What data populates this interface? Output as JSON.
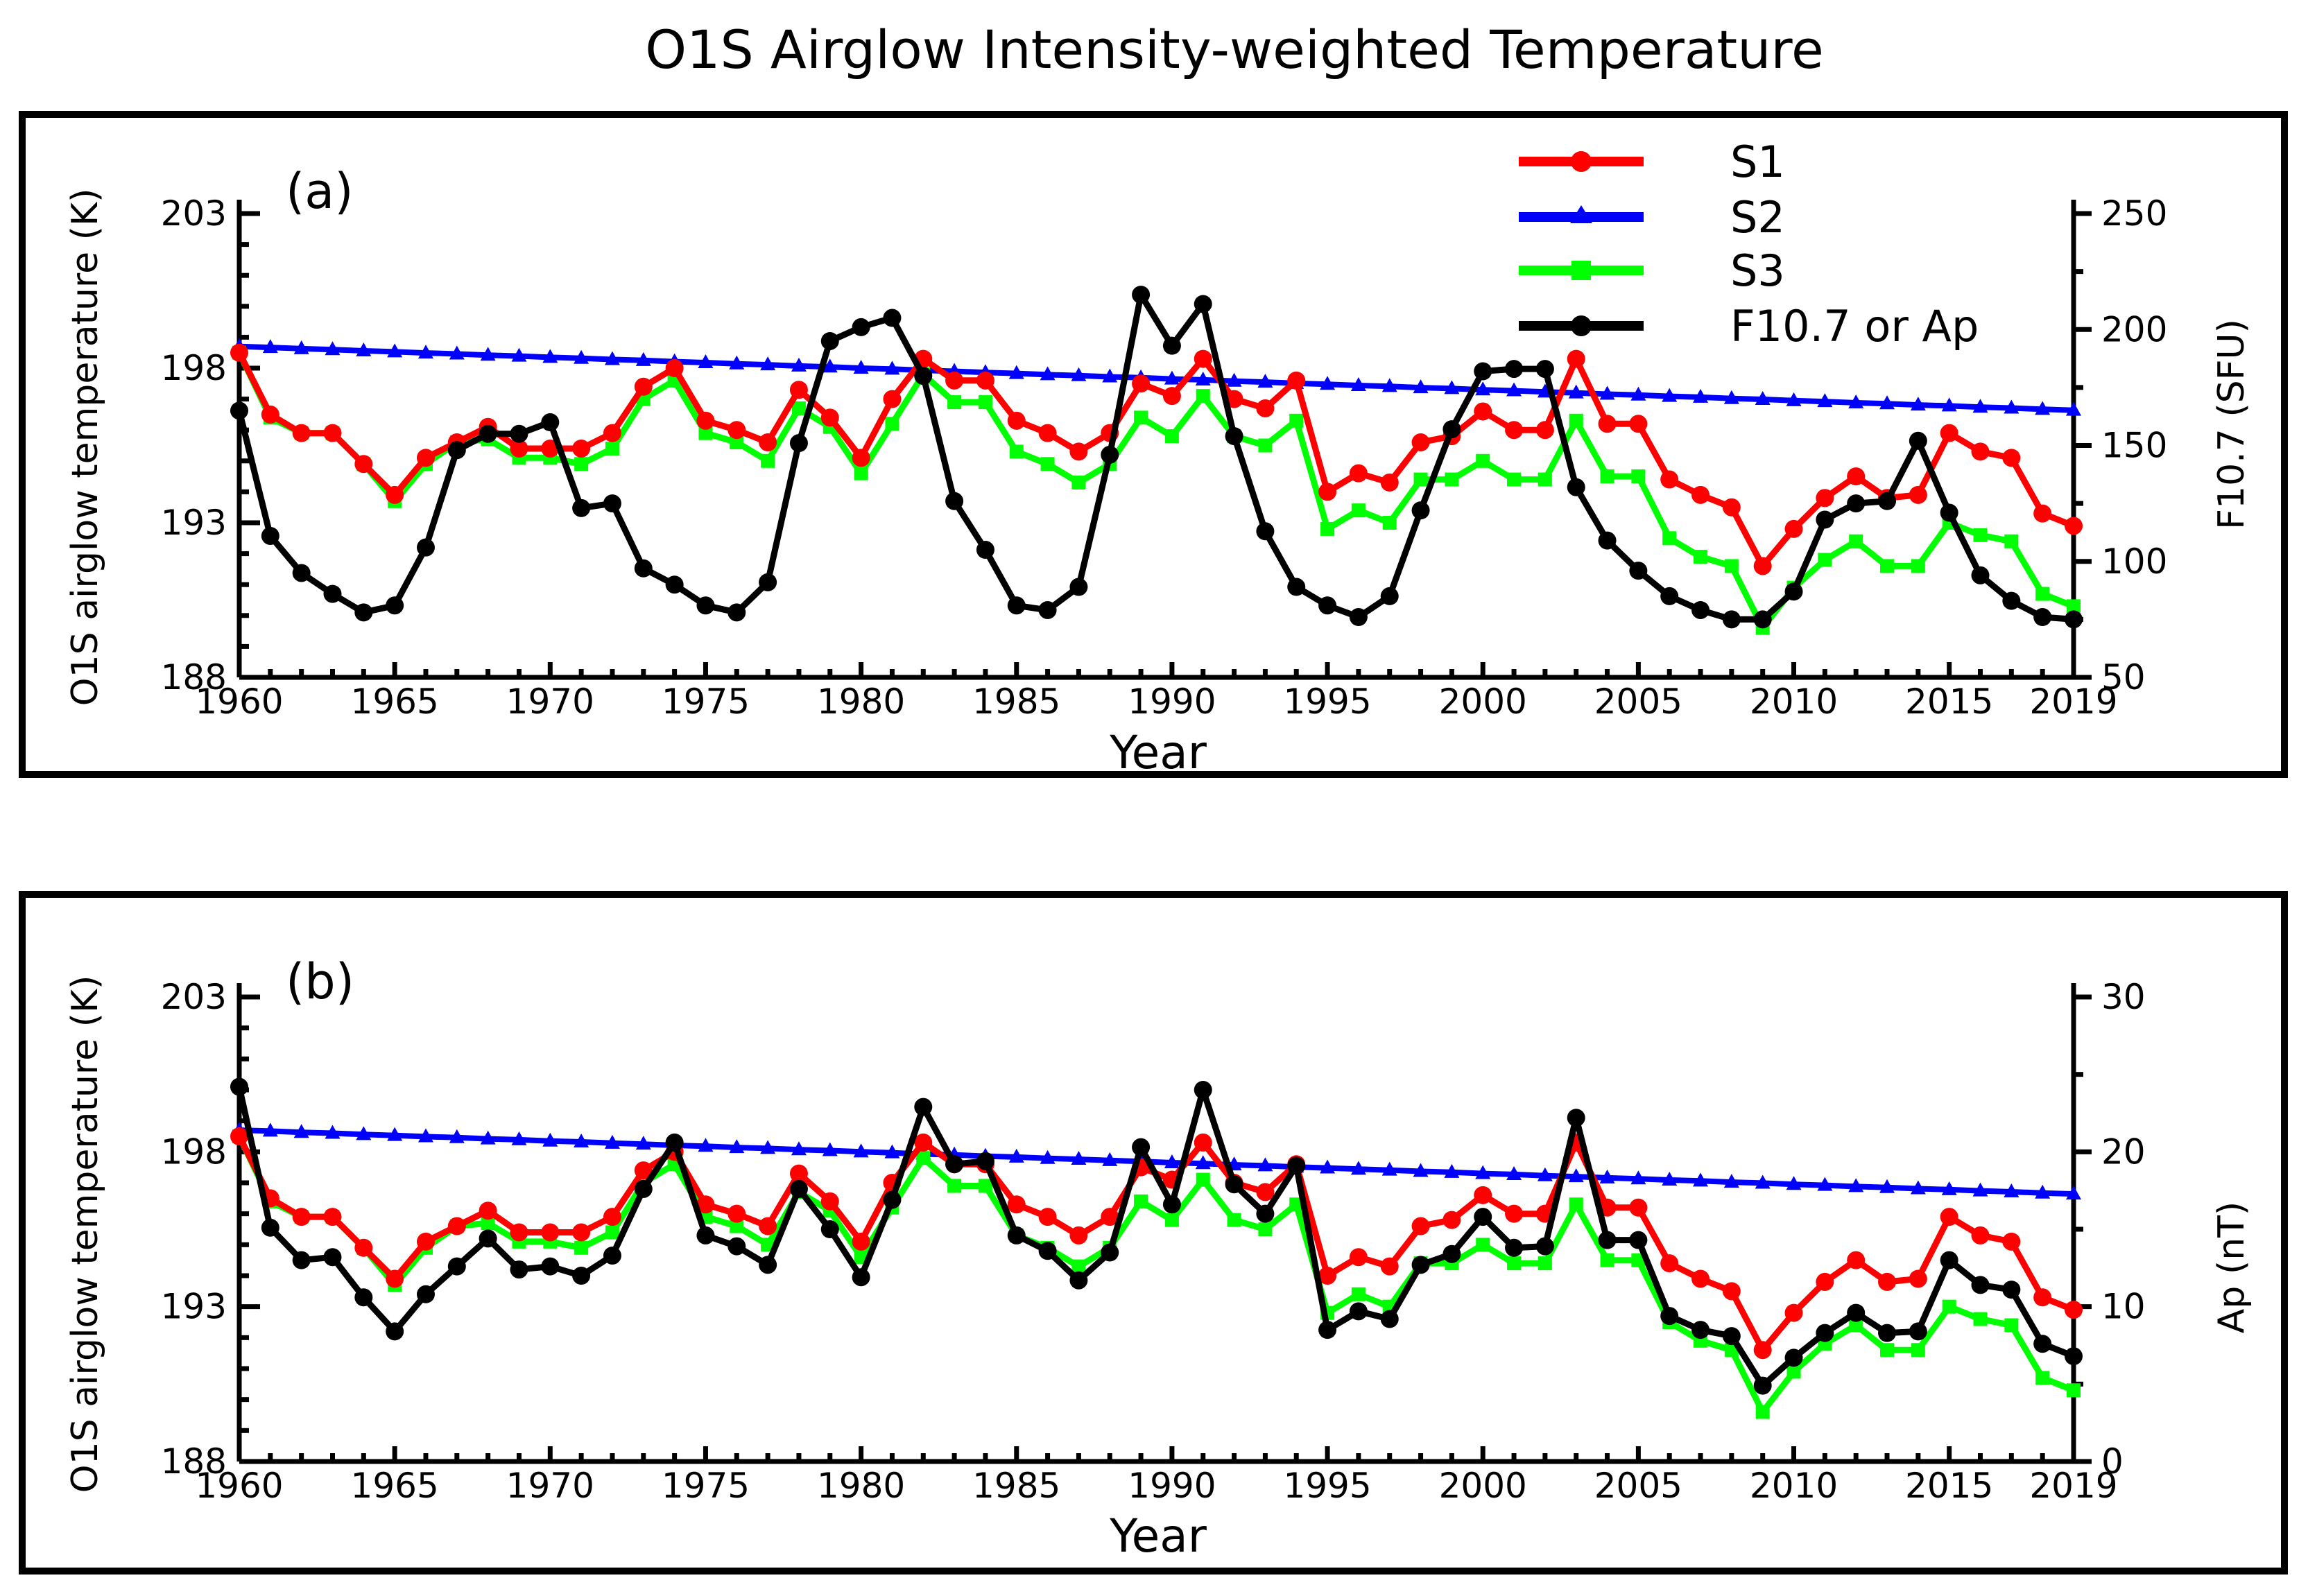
{
  "title": "O1S Airglow Intensity-weighted Temperature",
  "legend": {
    "s1": "S1",
    "s2": "S2",
    "s3": "S3",
    "black": "F10.7 or Ap"
  },
  "colors": {
    "s1": "#ff0000",
    "s2": "#0000ff",
    "s3": "#00ff00",
    "black": "#000000"
  },
  "chart_data": [
    {
      "panel": "(a)",
      "type": "line",
      "xlabel": "Year",
      "ylabel": "O1S airglow temperature (K)",
      "y2label": "F10.7 (SFU)",
      "xlim": [
        1960,
        2019
      ],
      "ylim": [
        188,
        203
      ],
      "y2lim": [
        50,
        250
      ],
      "xticks": [
        1960,
        1965,
        1970,
        1975,
        1980,
        1985,
        1990,
        1995,
        2000,
        2005,
        2010,
        2015,
        2019
      ],
      "yticks": [
        188,
        193,
        198,
        203
      ],
      "y2ticks": [
        50,
        100,
        150,
        200,
        250
      ],
      "x": [
        1960,
        1961,
        1962,
        1963,
        1964,
        1965,
        1966,
        1967,
        1968,
        1969,
        1970,
        1971,
        1972,
        1973,
        1974,
        1975,
        1976,
        1977,
        1978,
        1979,
        1980,
        1981,
        1982,
        1983,
        1984,
        1985,
        1986,
        1987,
        1988,
        1989,
        1990,
        1991,
        1992,
        1993,
        1994,
        1995,
        1996,
        1997,
        1998,
        1999,
        2000,
        2001,
        2002,
        2003,
        2004,
        2005,
        2006,
        2007,
        2008,
        2009,
        2010,
        2011,
        2012,
        2013,
        2014,
        2015,
        2016,
        2017,
        2018,
        2019
      ],
      "series": [
        {
          "name": "S1",
          "axis": "left",
          "marker": "circle",
          "values": [
            198.5,
            196.5,
            195.9,
            195.9,
            194.9,
            193.9,
            195.1,
            195.6,
            196.1,
            195.4,
            195.4,
            195.4,
            195.9,
            197.4,
            198.0,
            196.3,
            196.0,
            195.6,
            197.3,
            196.4,
            195.1,
            197.0,
            198.3,
            197.6,
            197.6,
            196.3,
            195.9,
            195.3,
            195.9,
            197.5,
            197.1,
            198.3,
            197.0,
            196.7,
            197.6,
            194.0,
            194.6,
            194.3,
            195.6,
            195.8,
            196.6,
            196.0,
            196.0,
            198.3,
            196.2,
            196.2,
            194.4,
            193.9,
            193.5,
            191.6,
            192.8,
            193.8,
            194.5,
            193.8,
            193.9,
            195.9,
            195.3,
            195.1,
            193.3,
            192.9
          ]
        },
        {
          "name": "S2",
          "axis": "left",
          "marker": "triangle",
          "values": [
            198.7,
            198.67,
            198.63,
            198.6,
            198.56,
            198.53,
            198.49,
            198.46,
            198.42,
            198.39,
            198.35,
            198.32,
            198.28,
            198.25,
            198.21,
            198.18,
            198.14,
            198.11,
            198.07,
            198.04,
            198.0,
            197.97,
            197.93,
            197.9,
            197.86,
            197.83,
            197.79,
            197.76,
            197.72,
            197.69,
            197.65,
            197.62,
            197.58,
            197.55,
            197.51,
            197.48,
            197.44,
            197.41,
            197.37,
            197.34,
            197.3,
            197.27,
            197.23,
            197.2,
            197.16,
            197.13,
            197.09,
            197.06,
            197.02,
            196.99,
            196.95,
            196.92,
            196.88,
            196.85,
            196.81,
            196.78,
            196.74,
            196.71,
            196.67,
            196.64
          ]
        },
        {
          "name": "S3",
          "axis": "left",
          "marker": "square",
          "values": [
            198.5,
            196.4,
            195.9,
            195.9,
            194.9,
            193.7,
            194.9,
            195.6,
            195.7,
            195.1,
            195.1,
            194.9,
            195.4,
            197.0,
            197.6,
            195.9,
            195.6,
            195.0,
            196.7,
            196.1,
            194.6,
            196.2,
            197.8,
            196.9,
            196.9,
            195.3,
            194.9,
            194.3,
            194.9,
            196.4,
            195.8,
            197.1,
            195.8,
            195.5,
            196.3,
            192.8,
            193.4,
            193.0,
            194.4,
            194.4,
            195.0,
            194.4,
            194.4,
            196.3,
            194.5,
            194.5,
            192.5,
            191.9,
            191.6,
            189.6,
            190.9,
            191.8,
            192.4,
            191.6,
            191.6,
            193.0,
            192.6,
            192.4,
            190.7,
            190.3
          ]
        },
        {
          "name": "F10.7 or Ap",
          "axis": "right",
          "marker": "circle",
          "values": [
            165,
            111,
            95,
            86,
            78,
            81,
            106,
            148,
            155,
            155,
            160,
            123,
            125,
            97,
            90,
            81,
            78,
            91,
            151,
            195,
            201,
            205,
            180,
            126,
            105,
            81,
            79,
            89,
            146,
            215,
            193,
            211,
            154,
            113,
            89,
            81,
            76,
            85,
            122,
            157,
            182,
            183,
            183,
            132,
            109,
            96,
            85,
            79,
            75,
            75,
            87,
            118,
            125,
            126,
            152,
            121,
            94,
            83,
            76,
            75
          ]
        }
      ]
    },
    {
      "panel": "(b)",
      "type": "line",
      "xlabel": "Year",
      "ylabel": "O1S airglow temperature (K)",
      "y2label": "Ap (nT)",
      "xlim": [
        1960,
        2019
      ],
      "ylim": [
        188,
        203
      ],
      "y2lim": [
        0,
        30
      ],
      "xticks": [
        1960,
        1965,
        1970,
        1975,
        1980,
        1985,
        1990,
        1995,
        2000,
        2005,
        2010,
        2015,
        2019
      ],
      "yticks": [
        188,
        193,
        198,
        203
      ],
      "y2ticks": [
        0,
        10,
        20,
        30
      ],
      "x": [
        1960,
        1961,
        1962,
        1963,
        1964,
        1965,
        1966,
        1967,
        1968,
        1969,
        1970,
        1971,
        1972,
        1973,
        1974,
        1975,
        1976,
        1977,
        1978,
        1979,
        1980,
        1981,
        1982,
        1983,
        1984,
        1985,
        1986,
        1987,
        1988,
        1989,
        1990,
        1991,
        1992,
        1993,
        1994,
        1995,
        1996,
        1997,
        1998,
        1999,
        2000,
        2001,
        2002,
        2003,
        2004,
        2005,
        2006,
        2007,
        2008,
        2009,
        2010,
        2011,
        2012,
        2013,
        2014,
        2015,
        2016,
        2017,
        2018,
        2019
      ],
      "series": [
        {
          "name": "S1",
          "axis": "left",
          "marker": "circle",
          "values": [
            198.5,
            196.5,
            195.9,
            195.9,
            194.9,
            193.9,
            195.1,
            195.6,
            196.1,
            195.4,
            195.4,
            195.4,
            195.9,
            197.4,
            198.0,
            196.3,
            196.0,
            195.6,
            197.3,
            196.4,
            195.1,
            197.0,
            198.3,
            197.6,
            197.6,
            196.3,
            195.9,
            195.3,
            195.9,
            197.5,
            197.1,
            198.3,
            197.0,
            196.7,
            197.6,
            194.0,
            194.6,
            194.3,
            195.6,
            195.8,
            196.6,
            196.0,
            196.0,
            198.3,
            196.2,
            196.2,
            194.4,
            193.9,
            193.5,
            191.6,
            192.8,
            193.8,
            194.5,
            193.8,
            193.9,
            195.9,
            195.3,
            195.1,
            193.3,
            192.9
          ]
        },
        {
          "name": "S2",
          "axis": "left",
          "marker": "triangle",
          "values": [
            198.7,
            198.67,
            198.63,
            198.6,
            198.56,
            198.53,
            198.49,
            198.46,
            198.42,
            198.39,
            198.35,
            198.32,
            198.28,
            198.25,
            198.21,
            198.18,
            198.14,
            198.11,
            198.07,
            198.04,
            198.0,
            197.97,
            197.93,
            197.9,
            197.86,
            197.83,
            197.79,
            197.76,
            197.72,
            197.69,
            197.65,
            197.62,
            197.58,
            197.55,
            197.51,
            197.48,
            197.44,
            197.41,
            197.37,
            197.34,
            197.3,
            197.27,
            197.23,
            197.2,
            197.16,
            197.13,
            197.09,
            197.06,
            197.02,
            196.99,
            196.95,
            196.92,
            196.88,
            196.85,
            196.81,
            196.78,
            196.74,
            196.71,
            196.67,
            196.64
          ]
        },
        {
          "name": "S3",
          "axis": "left",
          "marker": "square",
          "values": [
            198.5,
            196.4,
            195.9,
            195.9,
            194.9,
            193.7,
            194.9,
            195.6,
            195.7,
            195.1,
            195.1,
            194.9,
            195.4,
            197.0,
            197.6,
            195.9,
            195.6,
            195.0,
            196.7,
            196.1,
            194.6,
            196.2,
            197.8,
            196.9,
            196.9,
            195.3,
            194.9,
            194.3,
            194.9,
            196.4,
            195.8,
            197.1,
            195.8,
            195.5,
            196.3,
            192.8,
            193.4,
            193.0,
            194.4,
            194.4,
            195.0,
            194.4,
            194.4,
            196.3,
            194.5,
            194.5,
            192.5,
            191.9,
            191.6,
            189.6,
            190.9,
            191.8,
            192.4,
            191.6,
            191.6,
            193.0,
            192.6,
            192.4,
            190.7,
            190.3
          ]
        },
        {
          "name": "F10.7 or Ap",
          "axis": "right",
          "marker": "circle",
          "values": [
            24.2,
            15.1,
            13.0,
            13.2,
            10.6,
            8.4,
            10.8,
            12.6,
            14.4,
            12.4,
            12.6,
            12.0,
            13.3,
            17.6,
            20.6,
            14.6,
            13.9,
            12.7,
            17.6,
            15.0,
            11.9,
            16.9,
            22.9,
            19.2,
            19.4,
            14.6,
            13.6,
            11.7,
            13.5,
            20.3,
            16.6,
            24.0,
            17.9,
            16.0,
            19.1,
            8.5,
            9.7,
            9.2,
            12.7,
            13.4,
            15.8,
            13.8,
            13.9,
            22.2,
            14.3,
            14.3,
            9.4,
            8.5,
            8.1,
            4.9,
            6.7,
            8.3,
            9.6,
            8.3,
            8.4,
            13.0,
            11.4,
            11.1,
            7.6,
            6.8
          ]
        }
      ]
    }
  ]
}
